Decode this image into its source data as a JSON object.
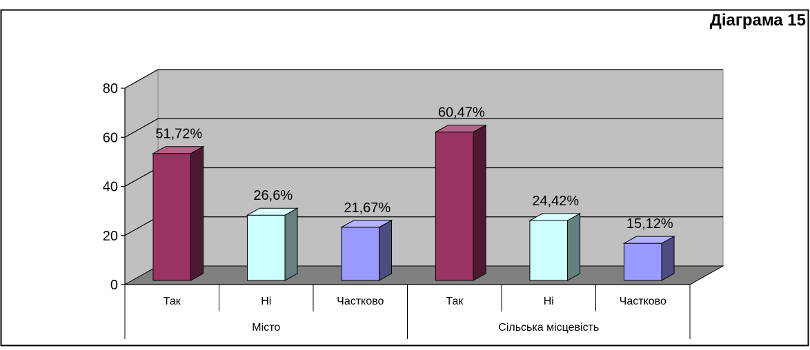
{
  "chart_data": {
    "type": "bar",
    "title": "Діаграма 15",
    "xlabel": "",
    "ylabel": "",
    "ylim": [
      0,
      80
    ],
    "yticks": [
      "0",
      "20",
      "40",
      "60",
      "80"
    ],
    "groups": [
      {
        "name": "Місто",
        "categories": [
          "Так",
          "Ні",
          "Частково"
        ]
      },
      {
        "name": "Сільська місцевість",
        "categories": [
          "Так",
          "Ні",
          "Частково"
        ]
      }
    ],
    "values": [
      51.72,
      26.6,
      21.67,
      60.47,
      24.42,
      15.12
    ],
    "labels": [
      "51,72%",
      "26,6%",
      "21,67%",
      "60,47%",
      "24,42%",
      "15,12%"
    ],
    "colors": [
      "#9A3262",
      "#CCFFFF",
      "#9999FF",
      "#9A3262",
      "#CCFFFF",
      "#9999FF"
    ],
    "grid": true,
    "legend": "none"
  }
}
